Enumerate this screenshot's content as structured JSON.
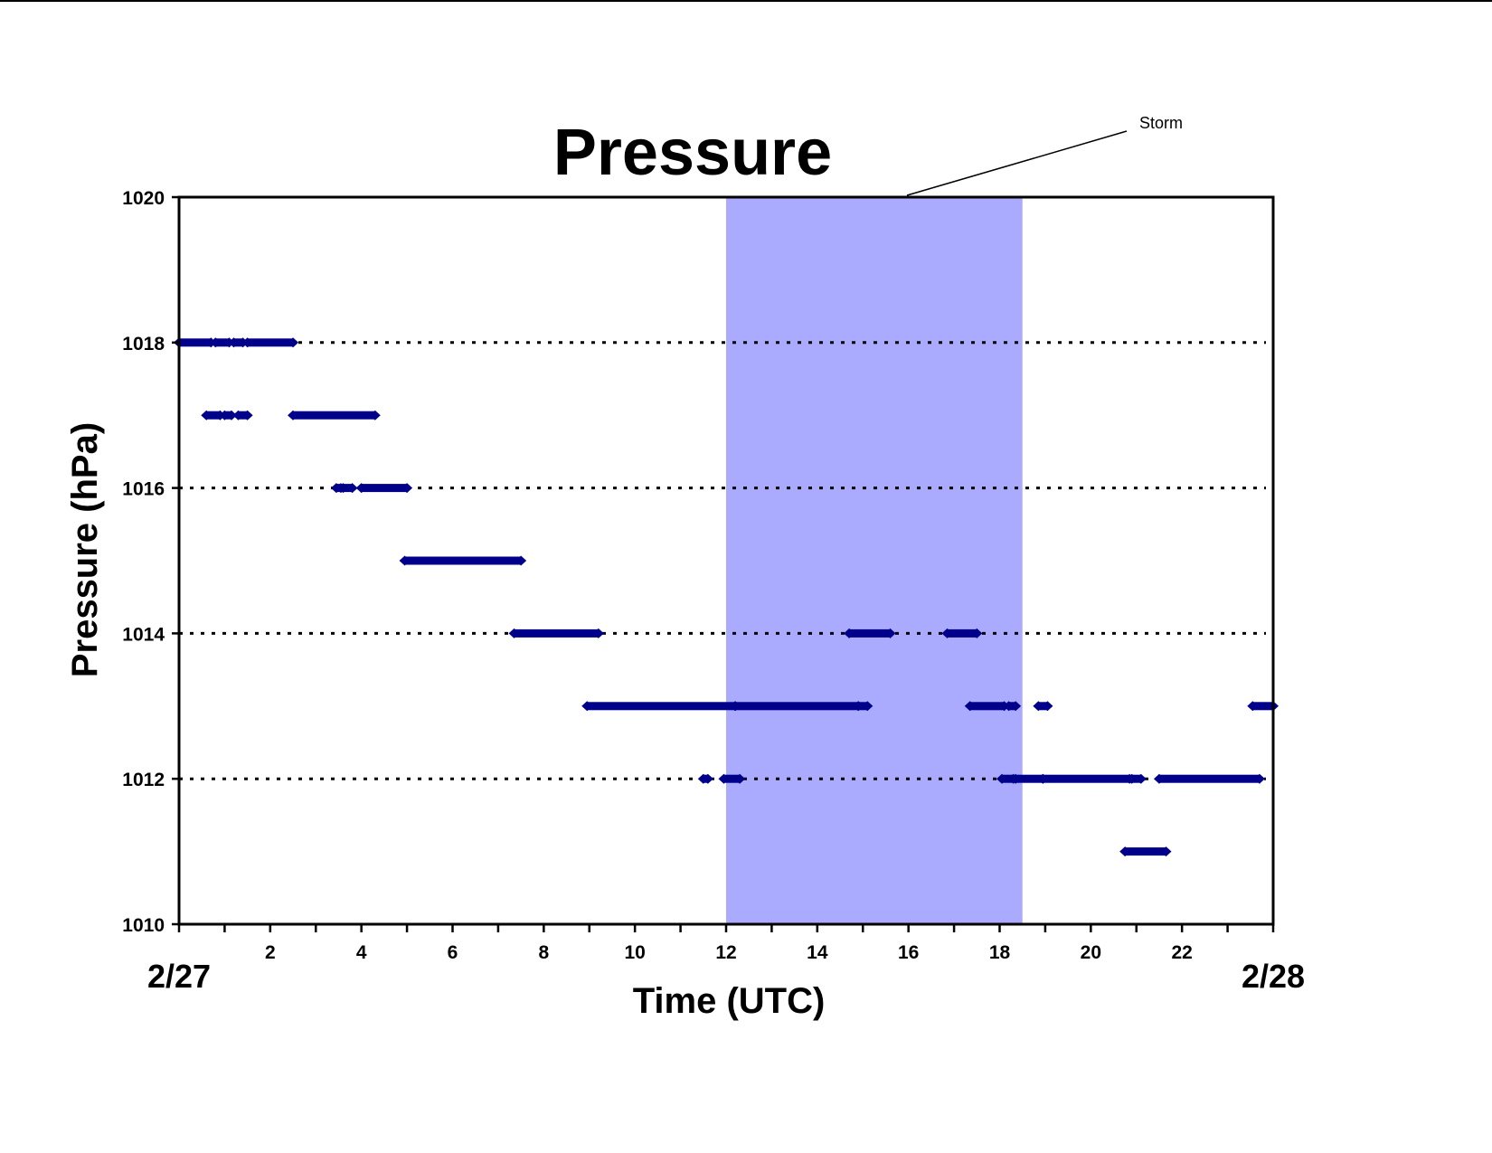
{
  "chart_data": {
    "type": "scatter",
    "title": "Pressure",
    "xlabel": "Time (UTC)",
    "ylabel": "Pressure (hPa)",
    "xlim": [
      0,
      24
    ],
    "ylim": [
      1010,
      1020
    ],
    "x_ticks": [
      2,
      4,
      6,
      8,
      10,
      12,
      14,
      16,
      18,
      20,
      22
    ],
    "x_minor_ticks": [
      0,
      1,
      2,
      3,
      4,
      5,
      6,
      7,
      8,
      9,
      10,
      11,
      12,
      13,
      14,
      15,
      16,
      17,
      18,
      19,
      20,
      21,
      22,
      23,
      24
    ],
    "y_ticks": [
      1010,
      1012,
      1014,
      1016,
      1018,
      1020
    ],
    "gridlines": [
      1012,
      1014,
      1016,
      1018
    ],
    "grid_style": "dotted",
    "date_labels": {
      "start": "2/27",
      "end": "2/28"
    },
    "marker_color": "#00008B",
    "annotations": [
      {
        "label": "Storm",
        "x_start": 12,
        "x_end": 18.5,
        "color": "#AAAAFF"
      }
    ],
    "series": [
      {
        "points": [
          [
            1018,
            0.0,
            0.7
          ],
          [
            1018,
            0.8,
            1.1
          ],
          [
            1018,
            1.2,
            1.4
          ],
          [
            1018,
            1.5,
            2.5
          ],
          [
            1017,
            0.6,
            0.9
          ],
          [
            1017,
            1.0,
            1.15
          ],
          [
            1017,
            1.3,
            1.5
          ],
          [
            1017,
            2.5,
            4.3
          ],
          [
            1016,
            3.45,
            3.55
          ],
          [
            1016,
            3.6,
            3.8
          ],
          [
            1016,
            4.0,
            5.0
          ],
          [
            1015,
            4.95,
            7.5
          ],
          [
            1014,
            7.35,
            9.2
          ],
          [
            1014,
            14.7,
            15.6
          ],
          [
            1014,
            16.85,
            17.5
          ],
          [
            1013,
            8.95,
            12.2
          ],
          [
            1013,
            12.2,
            14.9
          ],
          [
            1013,
            14.9,
            15.1
          ],
          [
            1013,
            17.35,
            18.1
          ],
          [
            1013,
            18.2,
            18.35
          ],
          [
            1013,
            18.85,
            19.05
          ],
          [
            1013,
            23.55,
            24.0
          ],
          [
            1012,
            11.5,
            11.6
          ],
          [
            1012,
            11.95,
            12.3
          ],
          [
            1012,
            18.05,
            18.3
          ],
          [
            1012,
            18.35,
            18.95
          ],
          [
            1012,
            18.95,
            20.85
          ],
          [
            1012,
            20.9,
            21.1
          ],
          [
            1012,
            21.5,
            23.7
          ],
          [
            1011,
            20.75,
            21.65
          ]
        ]
      }
    ]
  }
}
